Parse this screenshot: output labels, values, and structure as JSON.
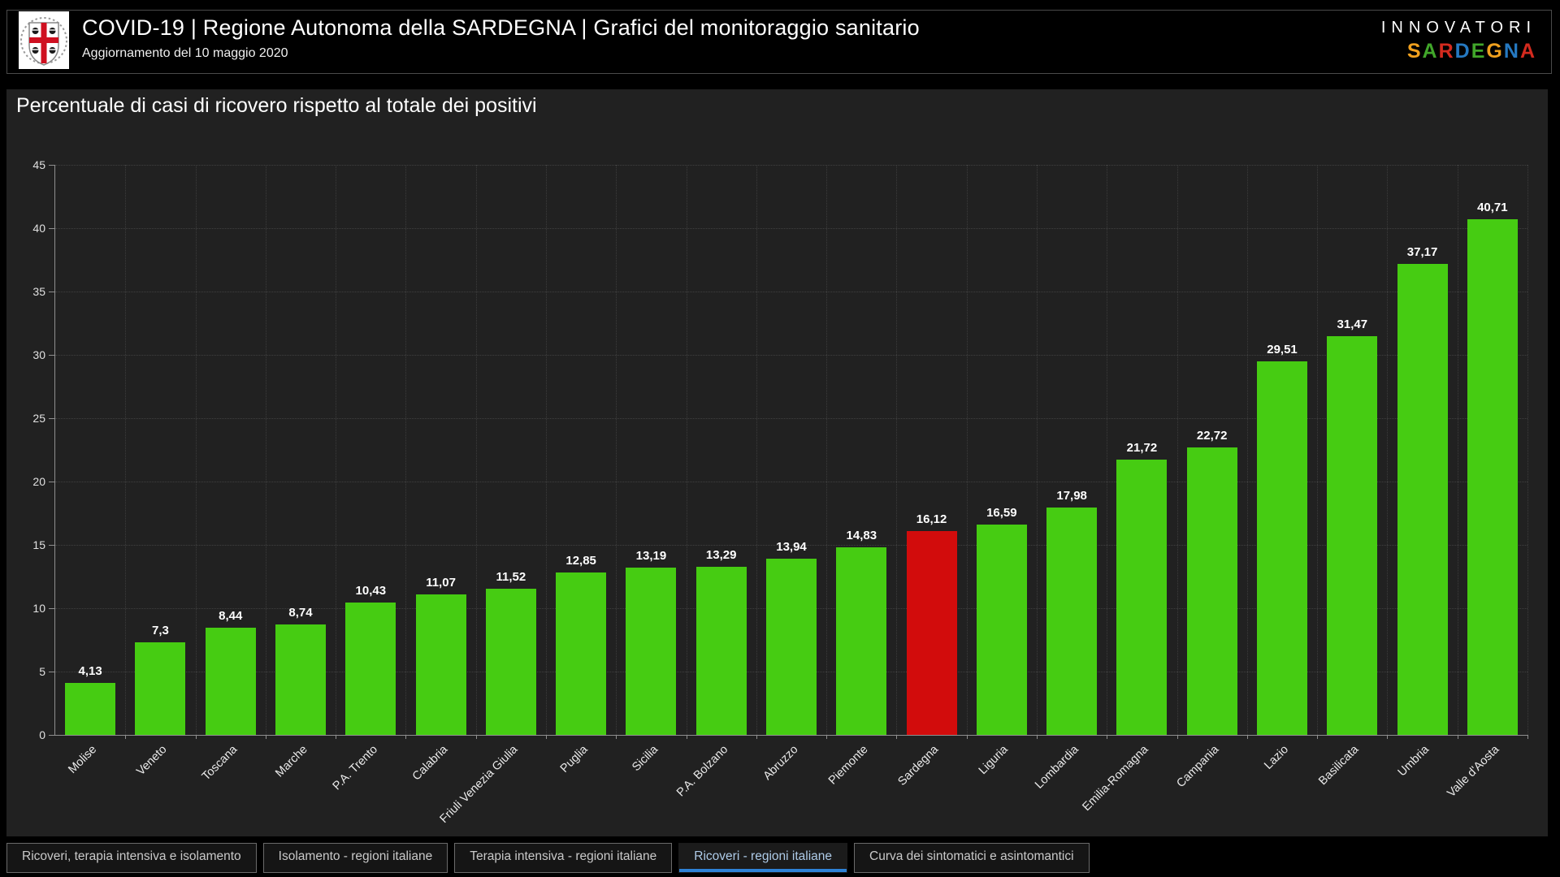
{
  "header": {
    "title": "COVID-19 | Regione Autonoma della SARDEGNA | Grafici del monitoraggio sanitario",
    "subtitle": "Aggiornamento del 10 maggio 2020",
    "logo_name": "sardinia-coat-of-arms",
    "brand": {
      "line1": "INNOVATORI",
      "line2_letters": [
        {
          "ch": "S",
          "color": "#f0a01e"
        },
        {
          "ch": "A",
          "color": "#41a62a"
        },
        {
          "ch": "R",
          "color": "#d42a1e"
        },
        {
          "ch": "D",
          "color": "#2579c1"
        },
        {
          "ch": "E",
          "color": "#41a62a"
        },
        {
          "ch": "G",
          "color": "#f0a01e"
        },
        {
          "ch": "N",
          "color": "#2579c1"
        },
        {
          "ch": "A",
          "color": "#d42a1e"
        }
      ]
    }
  },
  "chart_data": {
    "type": "bar",
    "title": "Percentuale di casi di ricovero rispetto al totale dei positivi",
    "categories": [
      "Molise",
      "Veneto",
      "Toscana",
      "Marche",
      "P.A. Trento",
      "Calabria",
      "Friuli Venezia Giulia",
      "Puglia",
      "Sicilia",
      "P.A. Bolzano",
      "Abruzzo",
      "Piemonte",
      "Sardegna",
      "Liguria",
      "Lombardia",
      "Emilia-Romagna",
      "Campania",
      "Lazio",
      "Basilicata",
      "Umbria",
      "Valle d'Aosta"
    ],
    "values": [
      4.13,
      7.3,
      8.44,
      8.74,
      10.43,
      11.07,
      11.52,
      12.85,
      13.19,
      13.29,
      13.94,
      14.83,
      16.12,
      16.59,
      17.98,
      21.72,
      22.72,
      29.51,
      31.47,
      37.17,
      40.71
    ],
    "value_labels": [
      "4,13",
      "7,3",
      "8,44",
      "8,74",
      "10,43",
      "11,07",
      "11,52",
      "12,85",
      "13,19",
      "13,29",
      "13,94",
      "14,83",
      "16,12",
      "16,59",
      "17,98",
      "21,72",
      "22,72",
      "29,51",
      "31,47",
      "37,17",
      "40,71"
    ],
    "highlight_category": "Sardegna",
    "highlight_index": 12,
    "bar_color": "#46cc12",
    "highlight_color": "#d20c0c",
    "xlabel": "",
    "ylabel": "",
    "ylim": [
      0,
      45
    ],
    "yticks": [
      0,
      5,
      10,
      15,
      20,
      25,
      30,
      35,
      40,
      45
    ],
    "grid": "dotted",
    "legend": "none",
    "background": "#212121"
  },
  "tabs": {
    "items": [
      "Ricoveri, terapia intensiva e isolamento",
      "Isolamento - regioni italiane",
      "Terapia intensiva - regioni italiane",
      "Ricoveri - regioni italiane",
      "Curva dei sintomatici e asintomantici"
    ],
    "active_index": 3,
    "accent_color": "#2e82d6"
  }
}
